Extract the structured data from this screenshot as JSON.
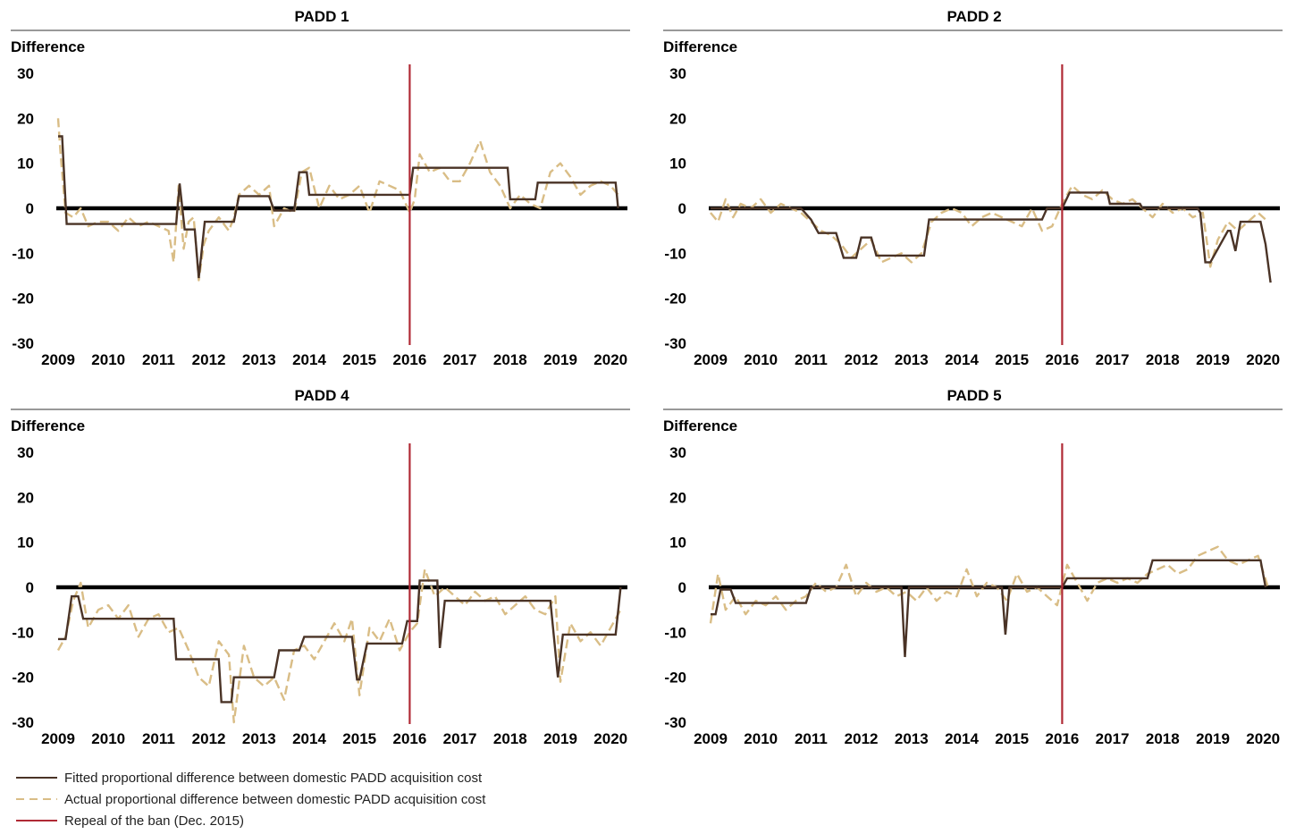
{
  "chart_data": [
    {
      "type": "line",
      "title": "PADD 1",
      "ylabel": "Difference",
      "xlim": [
        2009,
        2020.4
      ],
      "ylim": [
        -30,
        30
      ],
      "yticks": [
        30,
        20,
        10,
        0,
        -10,
        -20,
        -30
      ],
      "xticks": [
        2009,
        2010,
        2011,
        2012,
        2013,
        2014,
        2015,
        2016,
        2017,
        2018,
        2019,
        2020
      ],
      "ban_repeal_x": 2016,
      "series": [
        {
          "name": "Fitted proportional difference between domestic PADD acquisition cost",
          "style": "solid",
          "x": [
            2009.0,
            2009.08,
            2009.17,
            2011.35,
            2011.42,
            2011.52,
            2011.72,
            2011.8,
            2011.92,
            2012.5,
            2012.6,
            2013.2,
            2013.3,
            2013.7,
            2013.8,
            2013.95,
            2014.0,
            2016.0,
            2016.07,
            2017.45,
            2017.5,
            2017.95,
            2018.0,
            2018.5,
            2018.55,
            2020.1,
            2020.15
          ],
          "y": [
            16,
            16,
            -3.5,
            -3.5,
            5.5,
            -4.7,
            -4.7,
            -15.5,
            -3,
            -3,
            2.7,
            2.7,
            -0.5,
            -0.5,
            8,
            8,
            3,
            3,
            9,
            9,
            9,
            9,
            2,
            2,
            5.7,
            5.7,
            0
          ]
        },
        {
          "name": "Actual proportional difference between domestic PADD acquisition cost",
          "style": "dashed",
          "x": [
            2009.0,
            2009.05,
            2009.15,
            2009.3,
            2009.45,
            2009.6,
            2009.8,
            2010.0,
            2010.2,
            2010.4,
            2010.6,
            2010.8,
            2011.0,
            2011.2,
            2011.3,
            2011.4,
            2011.5,
            2011.6,
            2011.7,
            2011.8,
            2011.9,
            2012.0,
            2012.2,
            2012.4,
            2012.5,
            2012.6,
            2012.8,
            2013.0,
            2013.2,
            2013.3,
            2013.5,
            2013.7,
            2013.85,
            2014.0,
            2014.2,
            2014.4,
            2014.6,
            2014.8,
            2015.0,
            2015.2,
            2015.4,
            2015.6,
            2015.8,
            2016.0,
            2016.1,
            2016.2,
            2016.4,
            2016.6,
            2016.8,
            2017.0,
            2017.2,
            2017.4,
            2017.6,
            2017.8,
            2018.0,
            2018.2,
            2018.4,
            2018.6,
            2018.8,
            2019.0,
            2019.2,
            2019.4,
            2019.6,
            2019.8,
            2020.0,
            2020.15
          ],
          "y": [
            20,
            12,
            -1,
            -2,
            0,
            -4,
            -3,
            -3,
            -5,
            -2,
            -4,
            -3,
            -4,
            -5,
            -12,
            5,
            -9,
            -3,
            -2,
            -16,
            -8,
            -5,
            -2,
            -5,
            -2,
            3,
            5,
            3,
            5,
            -4,
            0,
            -1,
            8,
            9,
            0,
            5,
            2,
            3,
            5,
            -1,
            6,
            5,
            4,
            -1,
            2,
            12,
            8,
            9,
            6,
            6,
            10,
            15,
            8,
            5,
            0,
            3,
            1,
            0,
            8,
            10,
            7,
            3,
            5,
            6,
            5,
            3
          ]
        }
      ]
    },
    {
      "type": "line",
      "title": "PADD 2",
      "ylabel": "Difference",
      "xlim": [
        2009,
        2020.4
      ],
      "ylim": [
        -30,
        30
      ],
      "yticks": [
        30,
        20,
        10,
        0,
        -10,
        -20,
        -30
      ],
      "xticks": [
        2009,
        2010,
        2011,
        2012,
        2013,
        2014,
        2015,
        2016,
        2017,
        2018,
        2019,
        2020
      ],
      "ban_repeal_x": 2016,
      "series": [
        {
          "name": "Fitted proportional difference between domestic PADD acquisition cost",
          "style": "solid",
          "x": [
            2009.0,
            2010.8,
            2011.0,
            2011.15,
            2011.5,
            2011.65,
            2011.9,
            2012.0,
            2012.2,
            2012.3,
            2013.25,
            2013.35,
            2015.6,
            2015.7,
            2016.0,
            2016.15,
            2016.9,
            2016.95,
            2017.55,
            2017.6,
            2018.7,
            2018.75,
            2018.85,
            2018.95,
            2019.3,
            2019.35,
            2019.45,
            2019.55,
            2019.95,
            2020.05,
            2020.15
          ],
          "y": [
            0,
            0,
            -2.5,
            -5.5,
            -5.5,
            -11,
            -11,
            -6.5,
            -6.5,
            -10.5,
            -10.5,
            -2.5,
            -2.5,
            0,
            0,
            3.5,
            3.5,
            1,
            1,
            0,
            0,
            -1,
            -12,
            -12,
            -5,
            -5,
            -9.5,
            -3,
            -3,
            -8,
            -16.5
          ]
        },
        {
          "name": "Actual proportional difference between domestic PADD acquisition cost",
          "style": "dashed",
          "x": [
            2009.0,
            2009.15,
            2009.3,
            2009.45,
            2009.6,
            2009.8,
            2010.0,
            2010.2,
            2010.4,
            2010.6,
            2010.8,
            2011.0,
            2011.2,
            2011.4,
            2011.6,
            2011.8,
            2012.0,
            2012.2,
            2012.4,
            2012.6,
            2012.8,
            2013.0,
            2013.2,
            2013.4,
            2013.6,
            2013.8,
            2014.0,
            2014.2,
            2014.4,
            2014.6,
            2014.8,
            2015.0,
            2015.2,
            2015.4,
            2015.6,
            2015.8,
            2016.0,
            2016.2,
            2016.4,
            2016.6,
            2016.8,
            2017.0,
            2017.2,
            2017.4,
            2017.6,
            2017.8,
            2018.0,
            2018.2,
            2018.4,
            2018.6,
            2018.8,
            2018.95,
            2019.1,
            2019.3,
            2019.5,
            2019.7,
            2019.9,
            2020.1
          ],
          "y": [
            -1,
            -3,
            2,
            -2,
            1,
            0,
            2,
            -1,
            1,
            0,
            -1,
            -3,
            -5,
            -6,
            -8,
            -11,
            -9,
            -7,
            -12,
            -11,
            -10,
            -12,
            -10,
            -3,
            -1,
            0,
            -1,
            -4,
            -2,
            -1,
            -2,
            -3,
            -4,
            0,
            -5,
            -4,
            1,
            5,
            3,
            2,
            4,
            2,
            1,
            2,
            0,
            -2,
            1,
            -1,
            0,
            -2,
            -1,
            -13,
            -7,
            -3,
            -5,
            -3,
            -1,
            -3
          ]
        }
      ]
    },
    {
      "type": "line",
      "title": "PADD 4",
      "ylabel": "Difference",
      "xlim": [
        2009,
        2020.4
      ],
      "ylim": [
        -30,
        30
      ],
      "yticks": [
        30,
        20,
        10,
        0,
        -10,
        -20,
        -30
      ],
      "xticks": [
        2009,
        2010,
        2011,
        2012,
        2013,
        2014,
        2015,
        2016,
        2017,
        2018,
        2019,
        2020
      ],
      "ban_repeal_x": 2016,
      "series": [
        {
          "name": "Fitted proportional difference between domestic PADD acquisition cost",
          "style": "solid",
          "x": [
            2009.0,
            2009.15,
            2009.27,
            2009.4,
            2009.5,
            2011.3,
            2011.35,
            2011.8,
            2012.2,
            2012.25,
            2012.45,
            2012.5,
            2013.3,
            2013.4,
            2013.8,
            2013.9,
            2014.7,
            2014.85,
            2014.95,
            2015.0,
            2015.15,
            2015.25,
            2015.85,
            2015.95,
            2016.15,
            2016.2,
            2016.5,
            2016.55,
            2016.6,
            2016.7,
            2018.7,
            2018.8,
            2018.95,
            2019.05,
            2020.1,
            2020.2
          ],
          "y": [
            -11.5,
            -11.5,
            -2,
            -2,
            -7,
            -7,
            -16,
            -16,
            -16,
            -25.5,
            -25.5,
            -20,
            -20,
            -14,
            -14,
            -11,
            -11,
            -11,
            -20.5,
            -20.5,
            -12.5,
            -12.5,
            -12.5,
            -7.5,
            -7.5,
            1.5,
            1.5,
            1.5,
            -13.5,
            -3,
            -3,
            -3,
            -20,
            -10.5,
            -10.5,
            0
          ]
        },
        {
          "name": "Actual proportional difference between domestic PADD acquisition cost",
          "style": "dashed",
          "x": [
            2009.0,
            2009.15,
            2009.3,
            2009.45,
            2009.6,
            2009.8,
            2010.0,
            2010.2,
            2010.4,
            2010.6,
            2010.8,
            2011.0,
            2011.2,
            2011.4,
            2011.6,
            2011.8,
            2012.0,
            2012.2,
            2012.4,
            2012.5,
            2012.7,
            2012.9,
            2013.1,
            2013.3,
            2013.5,
            2013.7,
            2013.9,
            2014.1,
            2014.3,
            2014.5,
            2014.7,
            2014.85,
            2015.0,
            2015.2,
            2015.4,
            2015.6,
            2015.8,
            2016.0,
            2016.15,
            2016.3,
            2016.5,
            2016.7,
            2016.9,
            2017.1,
            2017.3,
            2017.5,
            2017.7,
            2017.9,
            2018.1,
            2018.3,
            2018.5,
            2018.7,
            2018.9,
            2019.0,
            2019.2,
            2019.4,
            2019.6,
            2019.8,
            2020.0,
            2020.2
          ],
          "y": [
            -14,
            -11,
            -3,
            1,
            -9,
            -5,
            -4,
            -7,
            -4,
            -11,
            -7,
            -6,
            -10,
            -9,
            -14,
            -20,
            -22,
            -12,
            -15,
            -30,
            -13,
            -20,
            -22,
            -20,
            -25,
            -14,
            -13,
            -16,
            -12,
            -8,
            -12,
            -7,
            -24,
            -9,
            -12,
            -7,
            -14,
            -10,
            -8,
            4,
            -2,
            0,
            -2,
            -4,
            -1,
            -3,
            -2,
            -6,
            -4,
            -2,
            -5,
            -6,
            -2,
            -21,
            -8,
            -12,
            -10,
            -13,
            -9,
            -5
          ]
        }
      ]
    },
    {
      "type": "line",
      "title": "PADD 5",
      "ylabel": "Difference",
      "xlim": [
        2009,
        2020.4
      ],
      "ylim": [
        -30,
        30
      ],
      "yticks": [
        30,
        20,
        10,
        0,
        -10,
        -20,
        -30
      ],
      "xticks": [
        2009,
        2010,
        2011,
        2012,
        2013,
        2014,
        2015,
        2016,
        2017,
        2018,
        2019,
        2020
      ],
      "ban_repeal_x": 2016,
      "series": [
        {
          "name": "Fitted proportional difference between domestic PADD acquisition cost",
          "style": "solid",
          "x": [
            2009.0,
            2009.1,
            2009.2,
            2009.4,
            2009.5,
            2010.9,
            2011.0,
            2012.8,
            2012.87,
            2012.95,
            2014.8,
            2014.87,
            2014.95,
            2016.0,
            2016.1,
            2017.7,
            2017.8,
            2019.95,
            2020.05
          ],
          "y": [
            -6,
            -6,
            -0.5,
            -0.5,
            -3.5,
            -3.5,
            0,
            0,
            -15.5,
            0,
            0,
            -10.5,
            0,
            0,
            2,
            2,
            6,
            6,
            0
          ]
        },
        {
          "name": "Actual proportional difference between domestic PADD acquisition cost",
          "style": "dashed",
          "x": [
            2009.0,
            2009.15,
            2009.3,
            2009.5,
            2009.7,
            2009.9,
            2010.1,
            2010.3,
            2010.5,
            2010.7,
            2010.9,
            2011.1,
            2011.3,
            2011.5,
            2011.7,
            2011.9,
            2012.1,
            2012.3,
            2012.5,
            2012.7,
            2012.9,
            2013.1,
            2013.3,
            2013.5,
            2013.7,
            2013.9,
            2014.1,
            2014.3,
            2014.5,
            2014.7,
            2014.9,
            2015.1,
            2015.3,
            2015.5,
            2015.7,
            2015.9,
            2016.1,
            2016.3,
            2016.5,
            2016.7,
            2016.9,
            2017.1,
            2017.3,
            2017.5,
            2017.7,
            2017.9,
            2018.1,
            2018.3,
            2018.5,
            2018.7,
            2018.9,
            2019.1,
            2019.3,
            2019.5,
            2019.7,
            2019.9,
            2020.1
          ],
          "y": [
            -8,
            3,
            -5,
            -2,
            -6,
            -3,
            -4,
            -2,
            -5,
            -3,
            -2,
            1,
            -1,
            0,
            5,
            -2,
            1,
            -1,
            0,
            -2,
            -1,
            -3,
            0,
            -3,
            -1,
            -2,
            4,
            -2,
            1,
            0,
            -3,
            3,
            -1,
            0,
            -2,
            -4,
            5,
            1,
            -3,
            1,
            2,
            1,
            2,
            1,
            3,
            4,
            5,
            3,
            4,
            7,
            8,
            9,
            6,
            5,
            6,
            7,
            0
          ]
        }
      ]
    }
  ],
  "legend": [
    {
      "label": "Fitted proportional difference between domestic PADD acquisition cost",
      "style": "solid",
      "color": "#4a3326"
    },
    {
      "label": "Actual proportional difference between domestic PADD acquisition cost",
      "style": "dashed",
      "color": "#d9bd86"
    },
    {
      "label": "Repeal of the ban (Dec. 2015)",
      "style": "solid",
      "color": "#b02a35"
    }
  ],
  "colors": {
    "fitted": "#4a3326",
    "actual": "#d9bd86",
    "repeal": "#b02a35",
    "zero": "#000000"
  }
}
